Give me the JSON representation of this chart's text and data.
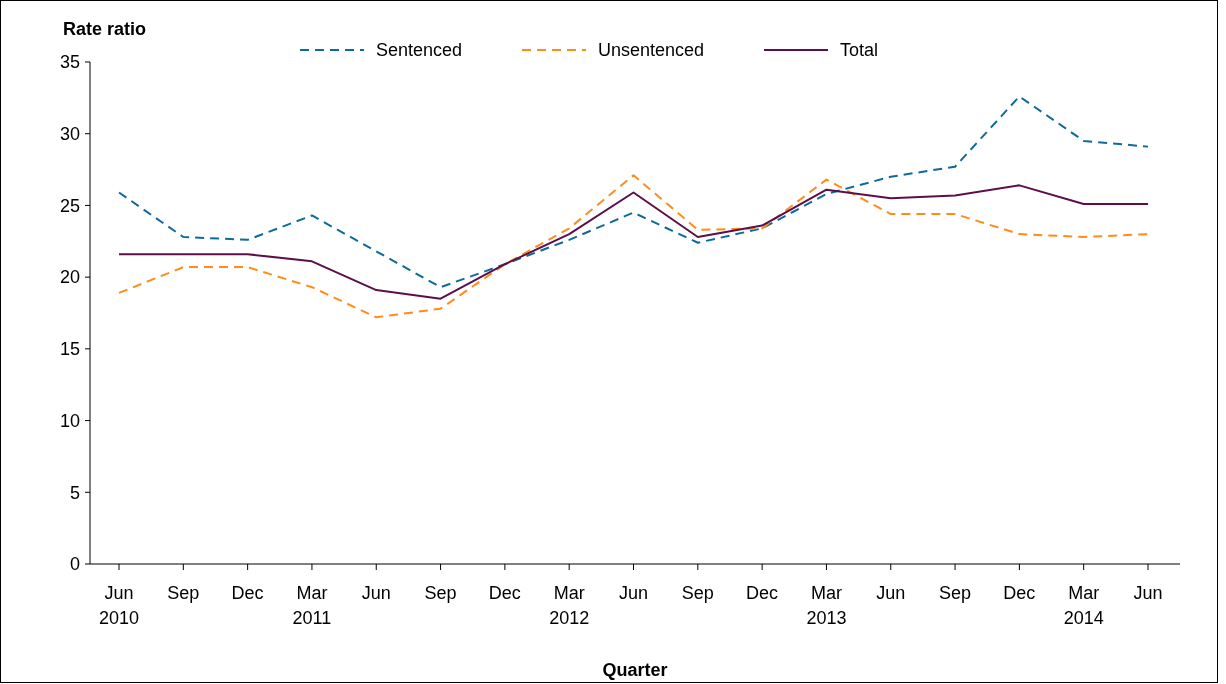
{
  "chart_data": {
    "type": "line",
    "ylabel": "Rate ratio",
    "xlabel": "Quarter",
    "categories": [
      "Jun 2010",
      "Sep",
      "Dec",
      "Mar 2011",
      "Jun",
      "Sep",
      "Dec",
      "Mar 2012",
      "Jun",
      "Sep",
      "Dec",
      "Mar 2013",
      "Jun",
      "Sep",
      "Dec",
      "Mar 2014",
      "Jun"
    ],
    "series": [
      {
        "name": "Sentenced",
        "color": "#0e6a9a",
        "line_style": "dashed",
        "values": [
          25.9,
          22.8,
          22.6,
          24.3,
          21.8,
          19.3,
          20.9,
          22.6,
          24.5,
          22.4,
          23.4,
          25.8,
          27.0,
          27.7,
          32.6,
          29.5,
          29.1
        ]
      },
      {
        "name": "Unsentenced",
        "color": "#ff8c1a",
        "line_style": "dashed",
        "values": [
          18.9,
          20.7,
          20.7,
          19.3,
          17.2,
          17.8,
          20.9,
          23.4,
          27.1,
          23.3,
          23.4,
          26.8,
          24.4,
          24.4,
          23.0,
          22.8,
          23.0
        ]
      },
      {
        "name": "Total",
        "color": "#5c0f4a",
        "line_style": "solid",
        "values": [
          21.6,
          21.6,
          21.6,
          21.1,
          19.1,
          18.5,
          20.9,
          23.0,
          25.9,
          22.8,
          23.6,
          26.1,
          25.5,
          25.7,
          26.4,
          25.1,
          25.1
        ]
      }
    ],
    "ylim": [
      0,
      35
    ],
    "yticks": [
      0,
      5,
      10,
      15,
      20,
      25,
      30,
      35
    ],
    "legend": "top",
    "grid": false,
    "marker": "none"
  }
}
